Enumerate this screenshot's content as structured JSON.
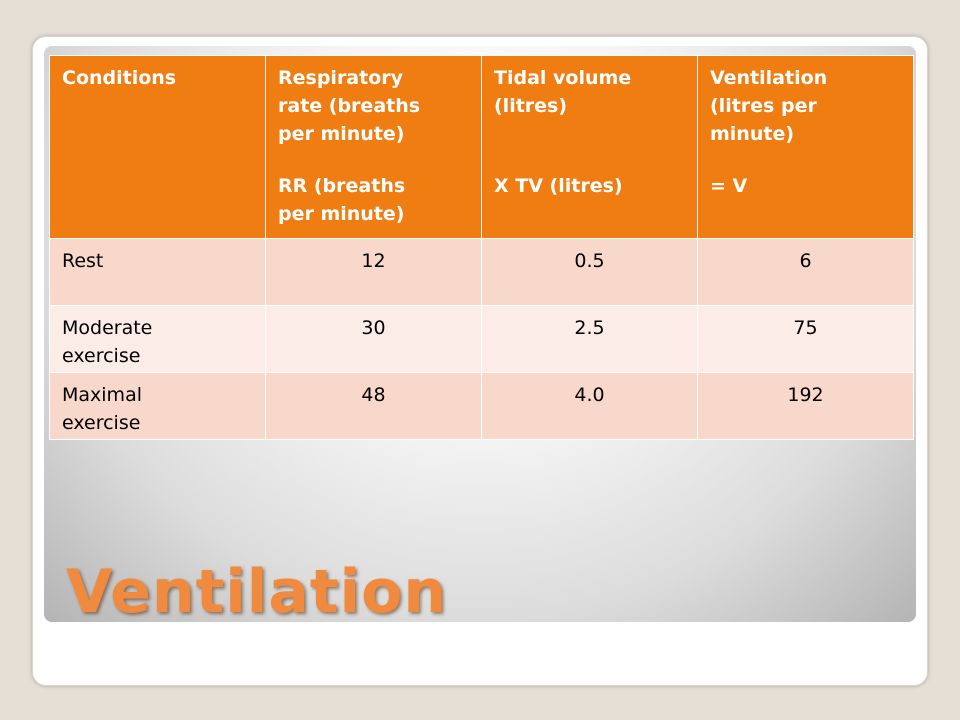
{
  "slide": {
    "title": "Ventilation"
  },
  "colors": {
    "header_bg": "#ef7d12",
    "row_odd_bg": "#f9d8cc",
    "row_even_bg": "#fcece7",
    "title_color": "#ef8a3e"
  },
  "table": {
    "headers": [
      {
        "lines": [
          "Conditions"
        ],
        "extra": []
      },
      {
        "lines": [
          "Respiratory",
          "rate (breaths",
          "per minute)"
        ],
        "extra": [
          "RR (breaths",
          "per minute)"
        ]
      },
      {
        "lines": [
          "Tidal volume",
          "(litres)"
        ],
        "extra": [
          "X TV (litres)"
        ]
      },
      {
        "lines": [
          "Ventilation",
          "(litres per",
          "minute)"
        ],
        "extra": [
          "= V"
        ]
      }
    ],
    "rows": [
      {
        "condition": [
          "Rest"
        ],
        "rr": "12",
        "tv": "0.5",
        "v": "6"
      },
      {
        "condition": [
          "Moderate",
          "exercise"
        ],
        "rr": "30",
        "tv": "2.5",
        "v": "75"
      },
      {
        "condition": [
          "Maximal",
          "exercise"
        ],
        "rr": "48",
        "tv": "4.0",
        "v": "192"
      }
    ]
  }
}
